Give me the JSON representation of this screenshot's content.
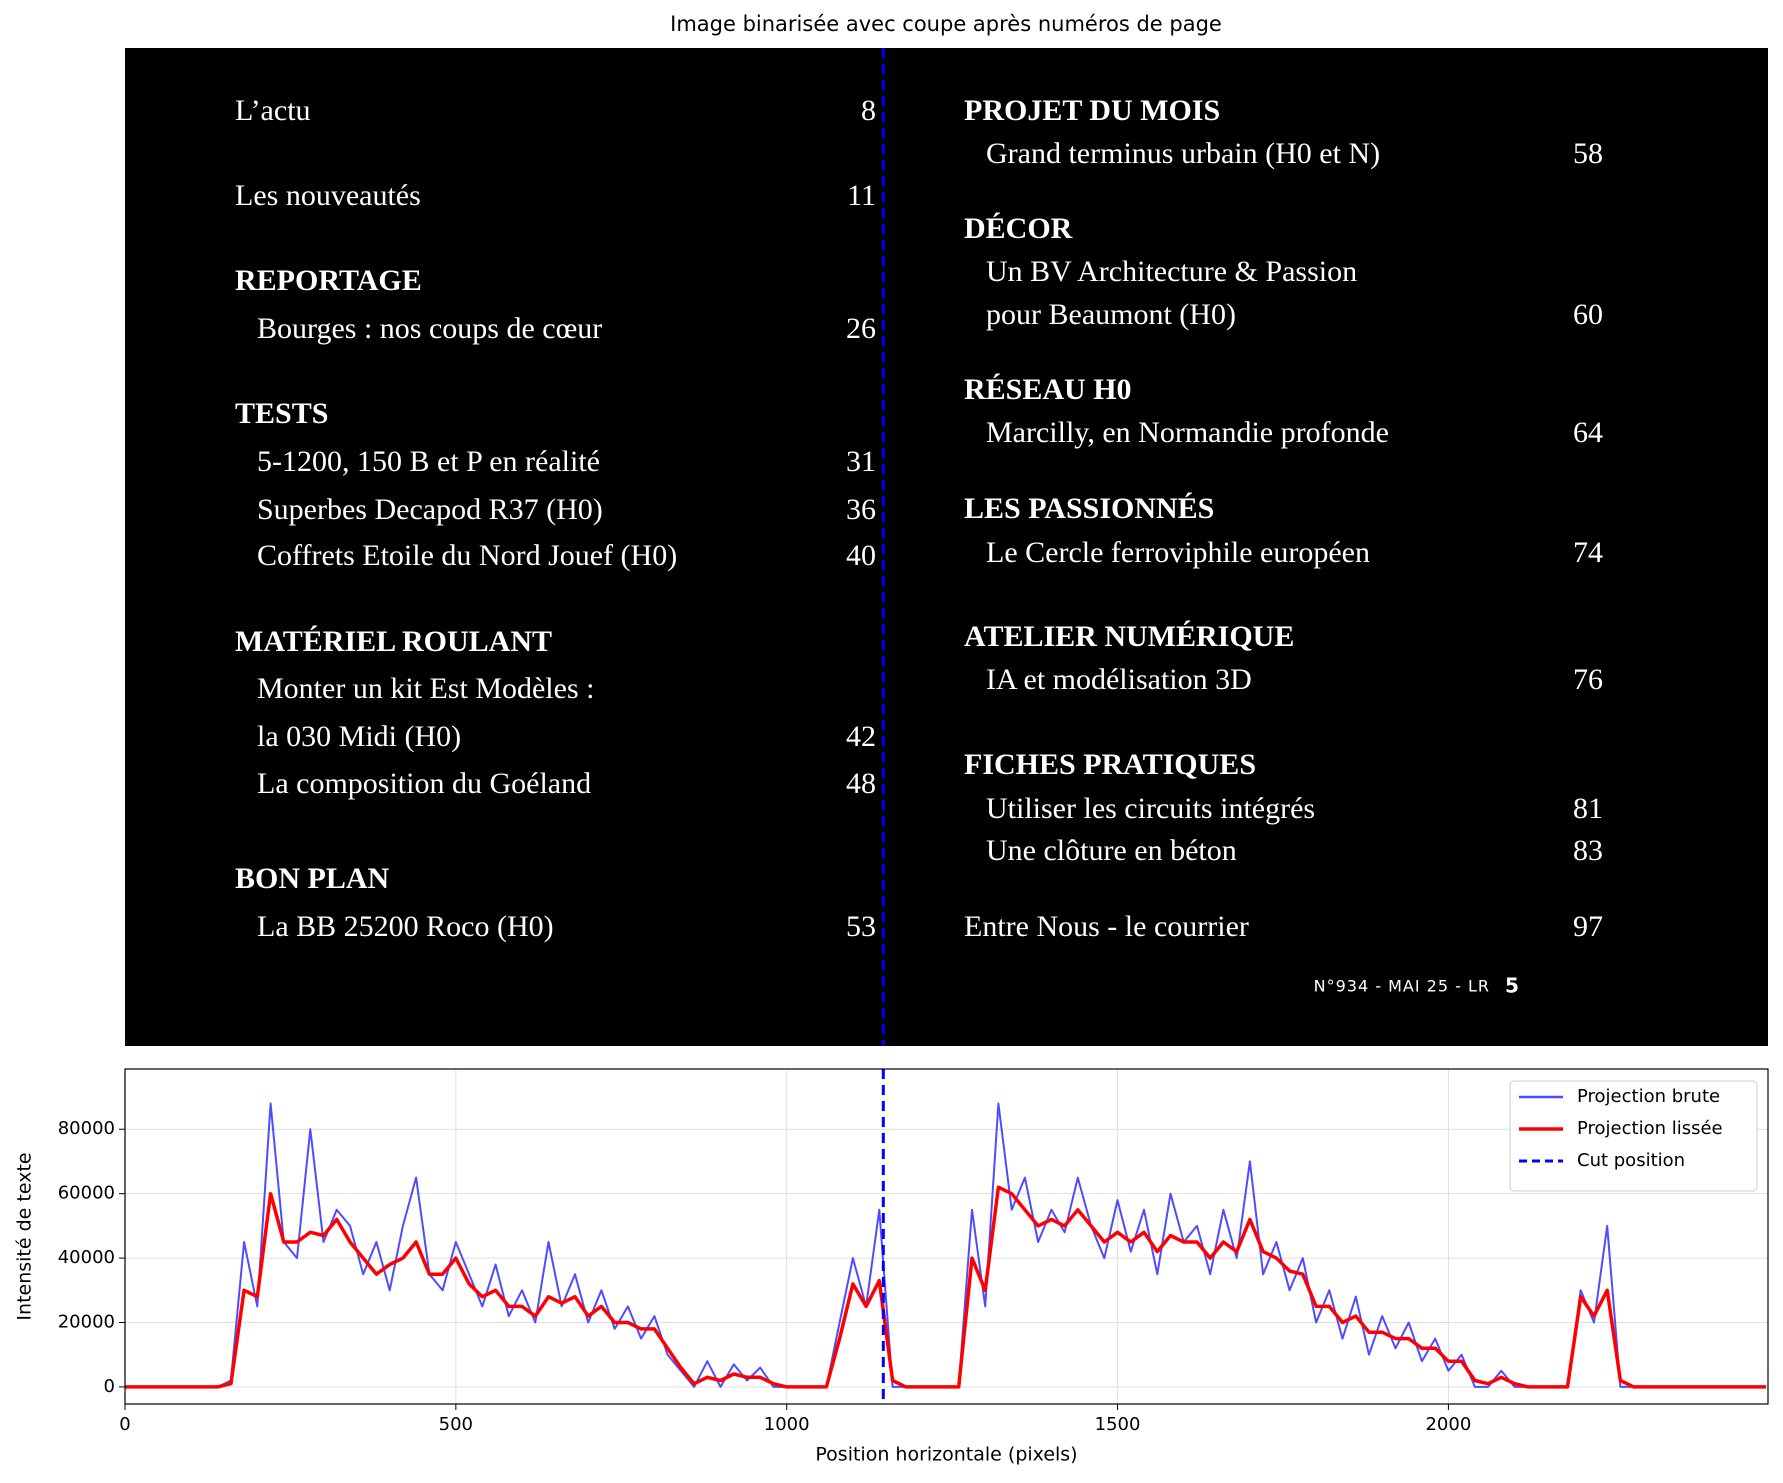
{
  "image": {
    "title": "Image binarisée avec coupe après numéros de page",
    "left": [
      {
        "text": "L’actu",
        "page": "8"
      },
      {
        "text": "Les nouveautés",
        "page": "11"
      },
      {
        "text": "REPORTAGE"
      },
      {
        "text": "Bourges : nos coups de cœur",
        "page": "26"
      },
      {
        "text": "TESTS"
      },
      {
        "text": "5-1200, 150 B et P en réalité",
        "page": "31"
      },
      {
        "text": "Superbes Decapod R37 (H0)",
        "page": "36"
      },
      {
        "text": "Coffrets Etoile du Nord Jouef (H0)",
        "page": "40"
      },
      {
        "text": "MATÉRIEL ROULANT"
      },
      {
        "text": "Monter un kit Est Modèles :"
      },
      {
        "text": "la 030 Midi (H0)",
        "page": "42"
      },
      {
        "text": "La composition du Goéland",
        "page": "48"
      },
      {
        "text": "BON PLAN"
      },
      {
        "text": "La BB 25200 Roco (H0)",
        "page": "53"
      }
    ],
    "right": [
      {
        "text": "PROJET DU MOIS"
      },
      {
        "text": "Grand terminus urbain (H0 et N)",
        "page": "58"
      },
      {
        "text": "DÉCOR"
      },
      {
        "text": "Un BV Architecture & Passion"
      },
      {
        "text": "pour Beaumont (H0)",
        "page": "60"
      },
      {
        "text": "RÉSEAU H0"
      },
      {
        "text": "Marcilly, en Normandie profonde",
        "page": "64"
      },
      {
        "text": "LES PASSIONNÉS"
      },
      {
        "text": "Le Cercle ferroviphile européen",
        "page": "74"
      },
      {
        "text": "ATELIER NUMÉRIQUE"
      },
      {
        "text": "IA et modélisation 3D",
        "page": "76"
      },
      {
        "text": "FICHES PRATIQUES"
      },
      {
        "text": "Utiliser les circuits intégrés",
        "page": "81"
      },
      {
        "text": "Une clôture en béton",
        "page": "83"
      },
      {
        "text": "Entre Nous - le courrier",
        "page": "97"
      }
    ],
    "footer": {
      "issue": "N°934 - MAI 25 - LR",
      "page": "5"
    }
  },
  "chart_data": {
    "type": "line",
    "xlabel": "Position horizontale (pixels)",
    "ylabel": "Intensité de texte",
    "x": [
      0,
      20,
      40,
      60,
      80,
      100,
      120,
      140,
      160,
      180,
      200,
      220,
      240,
      260,
      280,
      300,
      320,
      340,
      360,
      380,
      400,
      420,
      440,
      460,
      480,
      500,
      520,
      540,
      560,
      580,
      600,
      620,
      640,
      660,
      680,
      700,
      720,
      740,
      760,
      780,
      800,
      820,
      840,
      860,
      880,
      900,
      920,
      940,
      960,
      980,
      1000,
      1020,
      1040,
      1060,
      1080,
      1100,
      1120,
      1140,
      1160,
      1180,
      1200,
      1220,
      1240,
      1260,
      1280,
      1300,
      1320,
      1340,
      1360,
      1380,
      1400,
      1420,
      1440,
      1460,
      1480,
      1500,
      1520,
      1540,
      1560,
      1580,
      1600,
      1620,
      1640,
      1660,
      1680,
      1700,
      1720,
      1740,
      1760,
      1780,
      1800,
      1820,
      1840,
      1860,
      1880,
      1900,
      1920,
      1940,
      1960,
      1980,
      2000,
      2020,
      2040,
      2060,
      2080,
      2100,
      2120,
      2140,
      2160,
      2180,
      2200,
      2220,
      2240,
      2260,
      2280,
      2300,
      2320,
      2340,
      2360,
      2380,
      2400,
      2420,
      2440,
      2460,
      2480
    ],
    "series": [
      {
        "name": "Projection brute",
        "color": "#4d4dff",
        "values": [
          0,
          0,
          0,
          0,
          0,
          0,
          0,
          0,
          2000,
          45000,
          25000,
          88000,
          45000,
          40000,
          80000,
          45000,
          55000,
          50000,
          35000,
          45000,
          30000,
          50000,
          65000,
          35000,
          30000,
          45000,
          35000,
          25000,
          38000,
          22000,
          30000,
          20000,
          45000,
          25000,
          35000,
          20000,
          30000,
          18000,
          25000,
          15000,
          22000,
          10000,
          5000,
          0,
          8000,
          0,
          7000,
          2000,
          6000,
          0,
          0,
          0,
          0,
          0,
          20000,
          40000,
          25000,
          55000,
          0,
          0,
          0,
          0,
          0,
          0,
          55000,
          25000,
          88000,
          55000,
          65000,
          45000,
          55000,
          48000,
          65000,
          50000,
          40000,
          58000,
          42000,
          55000,
          35000,
          60000,
          45000,
          50000,
          35000,
          55000,
          40000,
          70000,
          35000,
          45000,
          30000,
          40000,
          20000,
          30000,
          15000,
          28000,
          10000,
          22000,
          12000,
          20000,
          8000,
          15000,
          5000,
          10000,
          0,
          0,
          5000,
          0,
          0,
          0,
          0,
          0,
          30000,
          20000,
          50000,
          0,
          0,
          0,
          0,
          0,
          0,
          0,
          0,
          0,
          0,
          0,
          0
        ]
      },
      {
        "name": "Projection lissée",
        "color": "#ff0000",
        "values": [
          0,
          0,
          0,
          0,
          0,
          0,
          0,
          0,
          1000,
          30000,
          28000,
          60000,
          45000,
          45000,
          48000,
          47000,
          52000,
          45000,
          40000,
          35000,
          38000,
          40000,
          45000,
          35000,
          35000,
          40000,
          32000,
          28000,
          30000,
          25000,
          25000,
          22000,
          28000,
          26000,
          28000,
          22000,
          25000,
          20000,
          20000,
          18000,
          18000,
          12000,
          6000,
          1000,
          3000,
          2000,
          4000,
          3000,
          3000,
          1000,
          0,
          0,
          0,
          0,
          15000,
          32000,
          25000,
          33000,
          2000,
          0,
          0,
          0,
          0,
          0,
          40000,
          30000,
          62000,
          60000,
          55000,
          50000,
          52000,
          50000,
          55000,
          50000,
          45000,
          48000,
          45000,
          48000,
          42000,
          47000,
          45000,
          45000,
          40000,
          45000,
          42000,
          52000,
          42000,
          40000,
          36000,
          35000,
          25000,
          25000,
          20000,
          22000,
          17000,
          17000,
          15000,
          15000,
          12000,
          12000,
          8000,
          8000,
          2000,
          1000,
          3000,
          1000,
          0,
          0,
          0,
          0,
          28000,
          22000,
          30000,
          2000,
          0,
          0,
          0,
          0,
          0,
          0,
          0,
          0,
          0,
          0,
          0
        ]
      }
    ],
    "vlines": [
      {
        "name": "Cut position",
        "x": 1146,
        "color": "#0000ff"
      }
    ],
    "xlim": [
      0,
      2483
    ],
    "ylim": [
      -5300,
      98700
    ],
    "xticks": [
      0,
      500,
      1000,
      1500,
      2000
    ],
    "yticks": [
      0,
      20000,
      40000,
      60000,
      80000
    ],
    "grid": true,
    "legend": "upper right"
  }
}
